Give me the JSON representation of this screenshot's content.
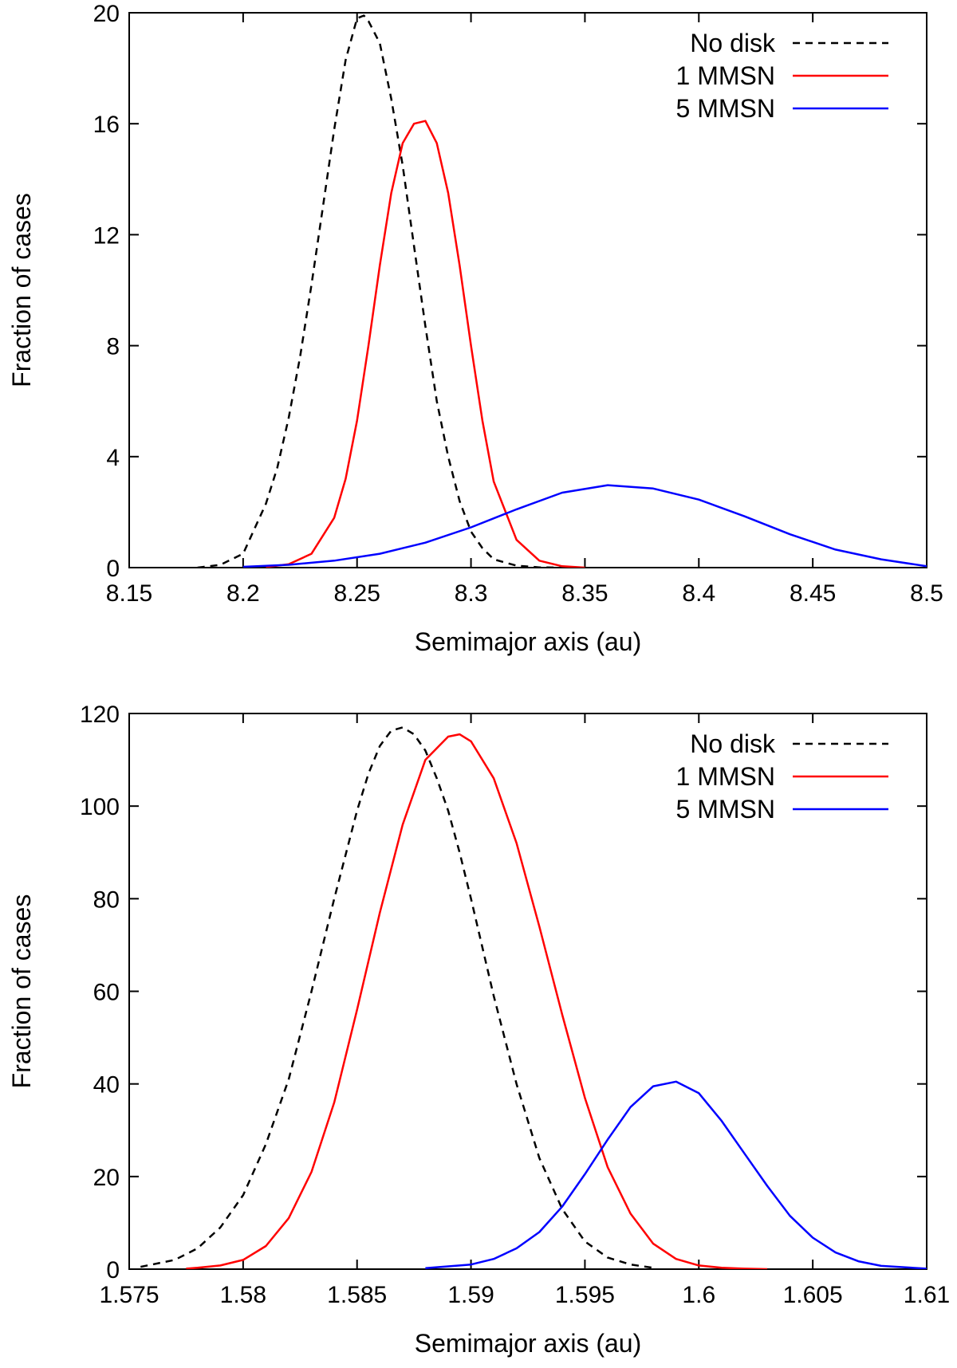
{
  "chart_data": [
    {
      "type": "line",
      "xlabel": "Semimajor axis (au)",
      "ylabel": "Fraction of cases",
      "xlim": [
        8.15,
        8.5
      ],
      "ylim": [
        0,
        20
      ],
      "xticks": [
        "8.15",
        "8.2",
        "8.25",
        "8.3",
        "8.35",
        "8.4",
        "8.45",
        "8.5"
      ],
      "yticks": [
        "0",
        "4",
        "8",
        "12",
        "16",
        "20"
      ],
      "legend_position": "top-right",
      "grid": false,
      "series": [
        {
          "name": "No disk",
          "color": "#000000",
          "style": "dashed",
          "x": [
            8.18,
            8.19,
            8.2,
            8.205,
            8.21,
            8.215,
            8.22,
            8.225,
            8.23,
            8.235,
            8.24,
            8.245,
            8.25,
            8.253,
            8.255,
            8.26,
            8.265,
            8.27,
            8.275,
            8.28,
            8.285,
            8.29,
            8.295,
            8.3,
            8.305,
            8.31,
            8.32,
            8.33,
            8.34
          ],
          "y": [
            0,
            0.1,
            0.5,
            1.4,
            2.3,
            3.6,
            5.4,
            7.6,
            10.2,
            13.0,
            15.8,
            18.3,
            19.8,
            19.9,
            19.7,
            18.9,
            16.9,
            14.5,
            11.6,
            8.7,
            6.0,
            4.0,
            2.4,
            1.3,
            0.7,
            0.3,
            0.07,
            0.01,
            0
          ]
        },
        {
          "name": "1 MMSN",
          "color": "#ff0000",
          "style": "solid",
          "x": [
            8.21,
            8.22,
            8.23,
            8.24,
            8.245,
            8.25,
            8.255,
            8.26,
            8.265,
            8.27,
            8.275,
            8.28,
            8.285,
            8.29,
            8.295,
            8.3,
            8.305,
            8.31,
            8.32,
            8.33,
            8.34,
            8.35
          ],
          "y": [
            0.02,
            0.12,
            0.5,
            1.8,
            3.2,
            5.3,
            8.0,
            10.9,
            13.5,
            15.3,
            16.0,
            16.1,
            15.3,
            13.5,
            10.9,
            8.0,
            5.3,
            3.1,
            1.0,
            0.25,
            0.05,
            0
          ]
        },
        {
          "name": "5 MMSN",
          "color": "#0000ff",
          "style": "solid",
          "x": [
            8.2,
            8.22,
            8.24,
            8.26,
            8.28,
            8.3,
            8.32,
            8.34,
            8.36,
            8.38,
            8.4,
            8.42,
            8.44,
            8.46,
            8.48,
            8.5
          ],
          "y": [
            0.03,
            0.1,
            0.25,
            0.5,
            0.9,
            1.45,
            2.1,
            2.7,
            2.97,
            2.85,
            2.45,
            1.85,
            1.2,
            0.65,
            0.3,
            0.05
          ]
        }
      ]
    },
    {
      "type": "line",
      "xlabel": "Semimajor axis (au)",
      "ylabel": "Fraction of cases",
      "xlim": [
        1.575,
        1.61
      ],
      "ylim": [
        0,
        120
      ],
      "xticks": [
        "1.575",
        "1.58",
        "1.585",
        "1.59",
        "1.595",
        "1.6",
        "1.605",
        "1.61"
      ],
      "yticks": [
        "0",
        "20",
        "40",
        "60",
        "80",
        "100",
        "120"
      ],
      "legend_position": "top-right",
      "grid": false,
      "series": [
        {
          "name": "No disk",
          "color": "#000000",
          "style": "dashed",
          "x": [
            1.5755,
            1.577,
            1.578,
            1.579,
            1.58,
            1.581,
            1.582,
            1.583,
            1.584,
            1.585,
            1.5855,
            1.586,
            1.5865,
            1.587,
            1.5875,
            1.588,
            1.5885,
            1.589,
            1.5895,
            1.59,
            1.591,
            1.592,
            1.593,
            1.594,
            1.595,
            1.596,
            1.597,
            1.598
          ],
          "y": [
            0.5,
            2,
            4.5,
            9,
            16,
            27,
            41,
            60,
            80,
            99,
            107,
            113,
            116.3,
            117,
            115.5,
            112,
            106,
            99,
            90,
            80,
            59,
            40,
            24,
            13,
            6,
            2.5,
            1,
            0.3
          ]
        },
        {
          "name": "1 MMSN",
          "color": "#ff0000",
          "style": "solid",
          "x": [
            1.5775,
            1.578,
            1.579,
            1.58,
            1.581,
            1.582,
            1.583,
            1.584,
            1.585,
            1.586,
            1.587,
            1.588,
            1.589,
            1.5895,
            1.59,
            1.591,
            1.592,
            1.593,
            1.594,
            1.595,
            1.596,
            1.597,
            1.598,
            1.599,
            1.6,
            1.601,
            1.602,
            1.603
          ],
          "y": [
            0.1,
            0.3,
            0.8,
            2,
            5,
            11,
            21,
            36,
            56,
            77,
            96,
            110,
            115,
            115.5,
            114,
            106,
            92,
            74,
            55,
            37,
            22,
            12,
            5.5,
            2.2,
            0.8,
            0.3,
            0.1,
            0
          ]
        },
        {
          "name": "5 MMSN",
          "color": "#0000ff",
          "style": "solid",
          "x": [
            1.588,
            1.59,
            1.591,
            1.592,
            1.593,
            1.594,
            1.595,
            1.596,
            1.597,
            1.598,
            1.599,
            1.6,
            1.601,
            1.602,
            1.603,
            1.604,
            1.605,
            1.606,
            1.607,
            1.608,
            1.61
          ],
          "y": [
            0.2,
            1,
            2.2,
            4.5,
            8,
            13.5,
            20.5,
            28,
            35,
            39.5,
            40.5,
            38,
            32,
            25,
            18,
            11.5,
            6.8,
            3.6,
            1.7,
            0.7,
            0.1
          ]
        }
      ]
    }
  ]
}
